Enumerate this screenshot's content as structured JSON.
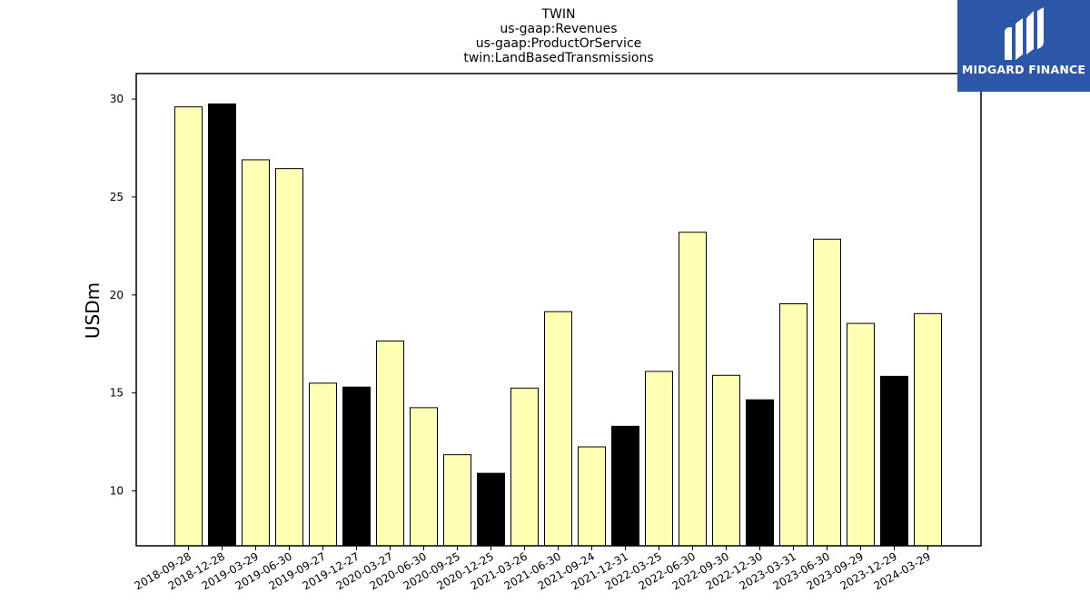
{
  "chart_data": {
    "type": "bar",
    "title_lines": [
      "TWIN",
      "us-gaap:Revenues",
      "us-gaap:ProductOrService",
      "twin:LandBasedTransmissions"
    ],
    "xlabel": "",
    "ylabel": "USDm",
    "ylim": [
      7.2,
      31.3
    ],
    "yticks": [
      10,
      15,
      20,
      25,
      30
    ],
    "grid": false,
    "categories": [
      "2018-09-28",
      "2018-12-28",
      "2019-03-29",
      "2019-06-30",
      "2019-09-27",
      "2019-12-27",
      "2020-03-27",
      "2020-06-30",
      "2020-09-25",
      "2020-12-25",
      "2021-03-26",
      "2021-06-30",
      "2021-09-24",
      "2021-12-31",
      "2022-03-25",
      "2022-06-30",
      "2022-09-30",
      "2022-12-30",
      "2023-03-31",
      "2023-06-30",
      "2023-09-29",
      "2023-12-29",
      "2024-03-29"
    ],
    "values": [
      29.6,
      29.75,
      26.9,
      26.45,
      15.5,
      15.3,
      17.65,
      14.25,
      11.85,
      10.9,
      15.25,
      19.15,
      12.25,
      13.3,
      16.1,
      23.2,
      15.9,
      14.65,
      19.55,
      22.85,
      18.55,
      15.85,
      19.05
    ],
    "bar_colors": [
      "#ffffb3",
      "#000000",
      "#ffffb3",
      "#ffffb3",
      "#ffffb3",
      "#000000",
      "#ffffb3",
      "#ffffb3",
      "#ffffb3",
      "#000000",
      "#ffffb3",
      "#ffffb3",
      "#ffffb3",
      "#000000",
      "#ffffb3",
      "#ffffb3",
      "#ffffb3",
      "#000000",
      "#ffffb3",
      "#ffffb3",
      "#ffffb3",
      "#000000",
      "#ffffb3"
    ]
  },
  "logo": {
    "text": "MIDGARD FINANCE",
    "background": "#2c57a8",
    "icon": "midgard-m-logo-icon"
  }
}
